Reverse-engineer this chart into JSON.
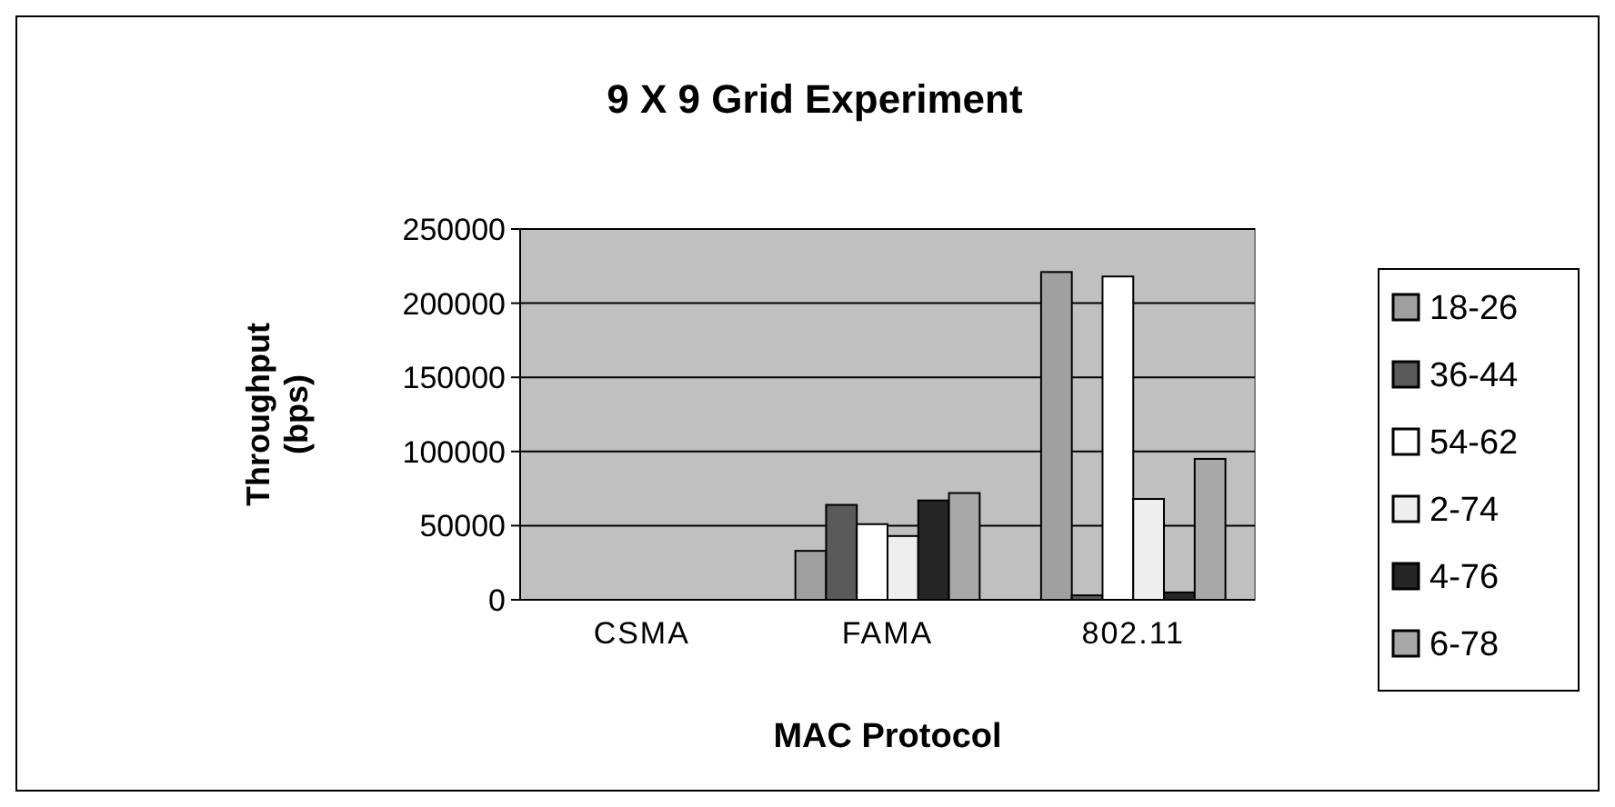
{
  "chart_data": {
    "type": "bar",
    "title": "9 X 9 Grid Experiment",
    "xlabel": "MAC Protocol",
    "ylabel": "Throughput (bps)",
    "categories": [
      "CSMA",
      "FAMA",
      "802.11"
    ],
    "series": [
      {
        "name": "18-26",
        "color": "#a0a0a0",
        "values": [
          0,
          33000,
          221000
        ]
      },
      {
        "name": "36-44",
        "color": "#5a5a5a",
        "values": [
          0,
          64000,
          3000
        ]
      },
      {
        "name": "54-62",
        "color": "#ffffff",
        "values": [
          0,
          51000,
          218000
        ]
      },
      {
        "name": "2-74",
        "color": "#eeeeee",
        "values": [
          0,
          43000,
          68000
        ]
      },
      {
        "name": "4-76",
        "color": "#262626",
        "values": [
          0,
          67000,
          5000
        ]
      },
      {
        "name": "6-78",
        "color": "#a8a8a8",
        "values": [
          0,
          72000,
          95000
        ]
      }
    ],
    "ylim": [
      0,
      250000
    ],
    "yticks": [
      0,
      50000,
      100000,
      150000,
      200000,
      250000
    ],
    "grid": "y",
    "legend": "right"
  }
}
